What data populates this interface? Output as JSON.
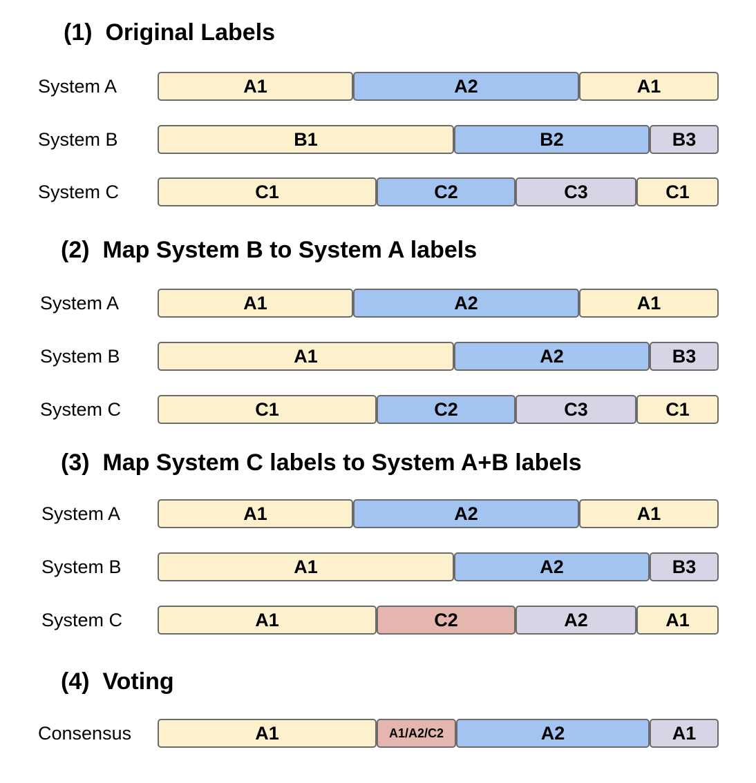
{
  "colors": {
    "yellow": "#fdf0cd",
    "blue": "#a3c3f0",
    "lavender": "#d8d4e6",
    "pink": "#e5b6ae"
  },
  "sections": [
    {
      "title": "(1)  Original Labels",
      "rows": [
        {
          "label": "System A",
          "segments": [
            {
              "text": "A1",
              "color": "yellow"
            },
            {
              "text": "A2",
              "color": "blue"
            },
            {
              "text": "A1",
              "color": "yellow"
            }
          ]
        },
        {
          "label": "System B",
          "segments": [
            {
              "text": "B1",
              "color": "yellow"
            },
            {
              "text": "B2",
              "color": "blue"
            },
            {
              "text": "B3",
              "color": "lavender"
            }
          ]
        },
        {
          "label": "System C",
          "segments": [
            {
              "text": "C1",
              "color": "yellow"
            },
            {
              "text": "C2",
              "color": "blue"
            },
            {
              "text": "C3",
              "color": "lavender"
            },
            {
              "text": "C1",
              "color": "yellow"
            }
          ]
        }
      ]
    },
    {
      "title": "(2)  Map System B to System A labels",
      "rows": [
        {
          "label": "System A",
          "segments": [
            {
              "text": "A1",
              "color": "yellow"
            },
            {
              "text": "A2",
              "color": "blue"
            },
            {
              "text": "A1",
              "color": "yellow"
            }
          ]
        },
        {
          "label": "System B",
          "segments": [
            {
              "text": "A1",
              "color": "yellow"
            },
            {
              "text": "A2",
              "color": "blue"
            },
            {
              "text": "B3",
              "color": "lavender"
            }
          ]
        },
        {
          "label": "System C",
          "segments": [
            {
              "text": "C1",
              "color": "yellow"
            },
            {
              "text": "C2",
              "color": "blue"
            },
            {
              "text": "C3",
              "color": "lavender"
            },
            {
              "text": "C1",
              "color": "yellow"
            }
          ]
        }
      ]
    },
    {
      "title": "(3)  Map System C labels to System A+B labels",
      "rows": [
        {
          "label": "System A",
          "segments": [
            {
              "text": "A1",
              "color": "yellow"
            },
            {
              "text": "A2",
              "color": "blue"
            },
            {
              "text": "A1",
              "color": "yellow"
            }
          ]
        },
        {
          "label": "System B",
          "segments": [
            {
              "text": "A1",
              "color": "yellow"
            },
            {
              "text": "A2",
              "color": "blue"
            },
            {
              "text": "B3",
              "color": "lavender"
            }
          ]
        },
        {
          "label": "System C",
          "segments": [
            {
              "text": "A1",
              "color": "yellow"
            },
            {
              "text": "C2",
              "color": "pink"
            },
            {
              "text": "A2",
              "color": "lavender"
            },
            {
              "text": "A1",
              "color": "yellow"
            }
          ]
        }
      ]
    },
    {
      "title": "(4)  Voting",
      "rows": [
        {
          "label": "Consensus",
          "segments": [
            {
              "text": "A1",
              "color": "yellow"
            },
            {
              "text": "A1/A2/C2",
              "color": "pink"
            },
            {
              "text": "A2",
              "color": "blue"
            },
            {
              "text": "A1",
              "color": "lavender"
            }
          ]
        }
      ]
    }
  ]
}
